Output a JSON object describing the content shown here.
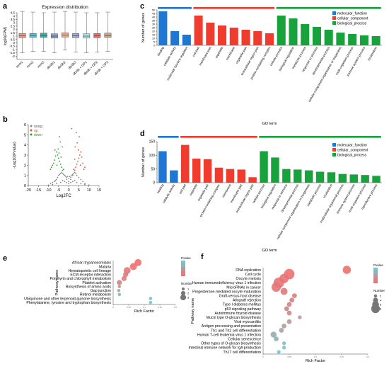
{
  "panels": {
    "a": {
      "letter": "a"
    },
    "b": {
      "letter": "b"
    },
    "c": {
      "letter": "c"
    },
    "d": {
      "letter": "d"
    },
    "e": {
      "letter": "e"
    },
    "f": {
      "letter": "f"
    }
  },
  "chart_data": [
    {
      "id": "a",
      "type": "box",
      "title": "Expression distribution",
      "ylabel": "log10(FPM)",
      "ylim": [
        -2.5,
        4.5
      ],
      "yticks": [
        -2,
        -1.5,
        -1,
        -0.5,
        0,
        0.5,
        1,
        1.5,
        2,
        2.5,
        3,
        3.5,
        4,
        4.5
      ],
      "categories": [
        "m/m1",
        "m/m2",
        "m/m3",
        "db/db1",
        "db/db2",
        "db/db3",
        "db/db + OP1",
        "db/db + OP2",
        "db/db + OP3"
      ],
      "colors": [
        "#f39b7f",
        "#5bc0de",
        "#2ab7a9",
        "#8da0cb",
        "#f4a582",
        "#a6a6d8",
        "#b0e0e6",
        "#f46d6d",
        "#c8a98a"
      ],
      "boxes": [
        {
          "min": -1.5,
          "q1": 0.75,
          "median": 1.05,
          "q3": 1.4,
          "max": 4.7
        },
        {
          "min": -1.3,
          "q1": 0.8,
          "median": 1.1,
          "q3": 1.4,
          "max": 4.6
        },
        {
          "min": -1.3,
          "q1": 0.8,
          "median": 1.1,
          "q3": 1.45,
          "max": 4.5
        },
        {
          "min": -1.5,
          "q1": 0.7,
          "median": 1.0,
          "q3": 1.35,
          "max": 4.6
        },
        {
          "min": -1.1,
          "q1": 0.85,
          "median": 1.15,
          "q3": 1.5,
          "max": 4.7
        },
        {
          "min": -1.4,
          "q1": 0.75,
          "median": 1.05,
          "q3": 1.4,
          "max": 4.6
        },
        {
          "min": -1.5,
          "q1": 0.7,
          "median": 1.0,
          "q3": 1.35,
          "max": 4.5
        },
        {
          "min": -1.4,
          "q1": 0.75,
          "median": 1.05,
          "q3": 1.4,
          "max": 4.5
        },
        {
          "min": -1.3,
          "q1": 0.8,
          "median": 1.1,
          "q3": 1.45,
          "max": 4.6
        }
      ]
    },
    {
      "id": "b",
      "type": "scatter",
      "xlabel": "Log2FC",
      "ylabel": "-Log10(Pvalue)",
      "xlim": [
        -20,
        15
      ],
      "ylim": [
        0,
        6
      ],
      "xticks": [
        -20,
        -15,
        -10,
        -5,
        0,
        5,
        10,
        15
      ],
      "yticks": [
        0,
        1,
        2,
        3,
        4,
        5,
        6
      ],
      "legend": [
        "nosig",
        "up",
        "down"
      ],
      "legend_colors": [
        "#888888",
        "#e64b35",
        "#2ca02c"
      ],
      "legend_position": "top-left",
      "series": [
        {
          "name": "nosig",
          "x": [
            -9,
            -8,
            -7,
            -6.5,
            -6,
            -5.5,
            -5,
            -4.5,
            -4,
            -3.5,
            -3,
            -2.5,
            -2,
            -1.5,
            -1,
            -0.5,
            0,
            0.5,
            1,
            1.5,
            2,
            2.5,
            3,
            3.5,
            4,
            5,
            6,
            7,
            8,
            -3,
            -2,
            -1,
            0,
            1,
            2,
            3,
            -4,
            4,
            -6,
            6,
            -8,
            8,
            -10,
            10,
            -2,
            2,
            -1,
            1,
            0
          ],
          "y": [
            0.2,
            0.3,
            0.4,
            0.5,
            0.6,
            0.8,
            1.0,
            1.1,
            1.2,
            1.3,
            1.2,
            1.1,
            1.0,
            0.9,
            0.8,
            0.9,
            0.7,
            0.9,
            0.8,
            1.0,
            1.1,
            1.2,
            1.3,
            1.2,
            1.0,
            0.8,
            0.6,
            0.4,
            0.2,
            0.5,
            0.4,
            0.3,
            0.2,
            0.3,
            0.4,
            0.5,
            0.3,
            0.3,
            0.2,
            0.2,
            0.1,
            0.1,
            0.05,
            0.05,
            1.0,
            1.0,
            0.6,
            0.6,
            0.4
          ]
        },
        {
          "name": "up",
          "x": [
            3,
            3.5,
            4,
            4.5,
            5,
            5.5,
            6,
            7,
            8,
            3.2,
            4.2,
            5.2,
            6.5,
            3.8,
            4.8,
            2.5,
            1.5,
            3,
            5.8,
            7.5
          ],
          "y": [
            1.5,
            1.8,
            2.1,
            2.4,
            2.7,
            3.0,
            3.3,
            2.2,
            1.8,
            3.8,
            4.2,
            4.8,
            2.8,
            5.2,
            3.5,
            1.6,
            5.6,
            2.6,
            2.0,
            1.6
          ]
        },
        {
          "name": "down",
          "x": [
            -3,
            -3.5,
            -4,
            -4.5,
            -5,
            -5.5,
            -6,
            -7,
            -8,
            -9,
            -3.2,
            -4.2,
            -5.2,
            -6.5,
            -3.8,
            -4.8,
            -2.5,
            -7.5,
            -8.5,
            -6.8,
            -4.6,
            -5.8
          ],
          "y": [
            1.5,
            1.8,
            2.1,
            2.4,
            2.7,
            3.0,
            3.3,
            2.5,
            2.0,
            1.6,
            3.8,
            4.3,
            3.6,
            2.9,
            2.8,
            3.2,
            1.6,
            2.2,
            1.8,
            3.5,
            4.8,
            2.0
          ]
        }
      ]
    },
    {
      "id": "c",
      "type": "bar",
      "ylabel": "Number of genes",
      "ylim": [
        0,
        50
      ],
      "yticks": [
        0,
        5,
        10,
        15,
        20,
        25,
        30,
        35,
        40,
        45,
        50
      ],
      "legend": [
        "molecular_function",
        "cellular_component",
        "biological_process"
      ],
      "legend_colors": [
        "#1f77d4",
        "#f03b2f",
        "#18a23c"
      ],
      "legend_position": "top-right",
      "categories": [
        "binding",
        "catalytic activity",
        "molecular function regulator",
        "cell part",
        "membrane part",
        "organelle",
        "membrane",
        "organelle part",
        "extracellular region part",
        "protein-containing complex",
        "cellular process",
        "biological regulation",
        "metabolic process",
        "response to stimulus",
        "developmental process",
        "cellular component organization or biogenesis",
        "multi-organism process",
        "immune system process",
        "localization"
      ],
      "groups": [
        0,
        0,
        0,
        1,
        1,
        1,
        1,
        1,
        1,
        1,
        2,
        2,
        2,
        2,
        2,
        2,
        2,
        2,
        2
      ],
      "values": [
        48,
        20,
        15,
        42,
        32,
        28,
        25,
        22,
        20,
        17,
        42,
        38,
        30,
        26,
        22,
        18,
        16,
        14,
        13
      ]
    },
    {
      "id": "d",
      "type": "bar",
      "xlabel": "GO term",
      "ylabel": "Number of genes",
      "ylim": [
        0,
        150
      ],
      "yticks": [
        0,
        50,
        100,
        150
      ],
      "legend": [
        "molecular_function",
        "cellular_component",
        "biological_process"
      ],
      "legend_colors": [
        "#1f77d4",
        "#f03b2f",
        "#18a23c"
      ],
      "legend_position": "top-right",
      "categories": [
        "binding",
        "catalytic activity",
        "cell part",
        "organelle",
        "organelle part",
        "protein-containing complex",
        "membrane",
        "membrane part",
        "extracellular region part",
        "cellular process",
        "biological regulation",
        "response to stimulus",
        "developmental process",
        "cellular component organization or biogenesis",
        "metabolic process",
        "localization",
        "multicellular organismal process",
        "immune system process",
        "multi-organism process",
        "reproductive process"
      ],
      "groups": [
        0,
        0,
        1,
        1,
        1,
        1,
        1,
        1,
        1,
        2,
        2,
        2,
        2,
        2,
        2,
        2,
        2,
        2,
        2,
        2
      ],
      "values": [
        115,
        45,
        138,
        88,
        86,
        55,
        50,
        48,
        20,
        115,
        92,
        50,
        48,
        45,
        40,
        38,
        32,
        30,
        28,
        25
      ]
    },
    {
      "id": "e",
      "type": "scatter",
      "subtype": "bubble",
      "xlabel": "Rich Factor",
      "ylabel": "Pathway name",
      "xlim": [
        0,
        0.2
      ],
      "colorbar_title": "Pvalue",
      "size_legend_title": "Number",
      "size_legend": [
        1,
        2,
        3
      ],
      "categories": [
        "African trypanosomiasis",
        "Malaria",
        "Hematopoietic cell lineage",
        "ECM-receptor interaction",
        "Porphyrin and chlorophyll metabolism",
        "Platelet activation",
        "Biosynthesis of amino acids",
        "Gap junction",
        "Retinol metabolism",
        "Ubiquinone and other terpenoid-quinone biosynthesis",
        "Phenylalanine, tyrosine and tryptophan biosynthesis"
      ],
      "x": [
        0.08,
        0.065,
        0.045,
        0.04,
        0.035,
        0.02,
        0.02,
        0.018,
        0.02,
        0.12,
        0.12
      ],
      "number": [
        3,
        3,
        3,
        2,
        2,
        2,
        1,
        1,
        1,
        1,
        1
      ],
      "pvalue": [
        0.001,
        0.002,
        0.004,
        0.006,
        0.008,
        0.01,
        0.02,
        0.025,
        0.03,
        0.035,
        0.04
      ]
    },
    {
      "id": "f",
      "type": "scatter",
      "subtype": "bubble",
      "xlabel": "Rich Factor",
      "ylabel": "Pathway name",
      "xlim": [
        0,
        0.2
      ],
      "colorbar_title": "Pvalue",
      "size_legend_title": "Number",
      "size_legend": [
        2,
        4,
        6,
        8
      ],
      "categories": [
        "DNA replication",
        "Cell cycle",
        "Oocyte meiosis",
        "Human immunodeficiency virus 1 infection",
        "MicroRNAs in cancer",
        "Progesterone-mediated oocyte maturation",
        "Graft-versus-host disease",
        "Allograft rejection",
        "Type I diabetes mellitus",
        "p53 signaling pathway",
        "Autoimmune thyroid disease",
        "Mucin type O-glycan biosynthesis",
        "Viral myocarditis",
        "Antigen processing and presentation",
        "Th1 and Th2 cell differentiation",
        "Human T-cell leukemia virus 1 infection",
        "Cellular senescence",
        "Other types of O-glycan biosynthesis",
        "Intestinal immune network for IgA production",
        "Th17 cell differentiation"
      ],
      "x": [
        0.16,
        0.05,
        0.04,
        0.03,
        0.025,
        0.04,
        0.06,
        0.055,
        0.05,
        0.045,
        0.05,
        0.07,
        0.05,
        0.04,
        0.035,
        0.02,
        0.025,
        0.04,
        0.04,
        0.03
      ],
      "number": [
        6,
        8,
        7,
        8,
        7,
        5,
        3,
        3,
        3,
        3,
        3,
        2,
        3,
        3,
        3,
        4,
        3,
        2,
        2,
        2
      ],
      "pvalue": [
        0.001,
        0.002,
        0.003,
        0.004,
        0.005,
        0.006,
        0.007,
        0.008,
        0.01,
        0.012,
        0.014,
        0.016,
        0.02,
        0.022,
        0.025,
        0.028,
        0.03,
        0.035,
        0.038,
        0.04
      ]
    }
  ]
}
